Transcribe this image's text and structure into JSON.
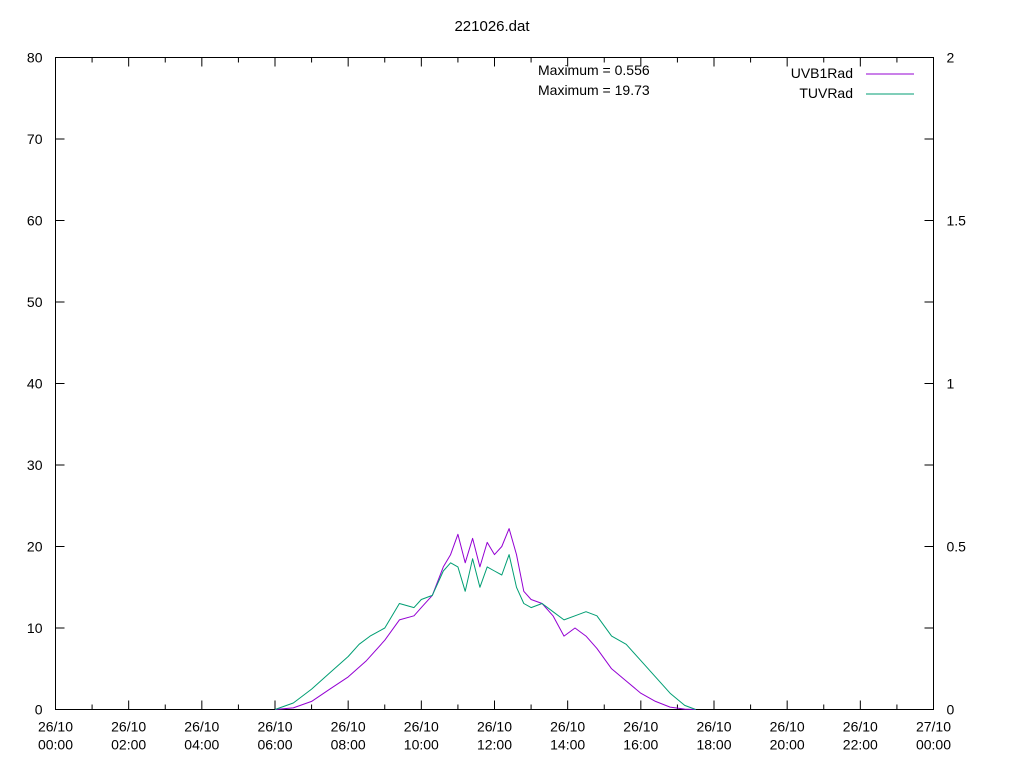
{
  "chart_data": {
    "type": "line",
    "title": "221026.dat",
    "xlabel": "",
    "ylabel": "",
    "x_ticks": [
      "26/10\n00:00",
      "26/10\n02:00",
      "26/10\n04:00",
      "26/10\n06:00",
      "26/10\n08:00",
      "26/10\n10:00",
      "26/10\n12:00",
      "26/10\n14:00",
      "26/10\n16:00",
      "26/10\n18:00",
      "26/10\n20:00",
      "26/10\n22:00",
      "27/10\n00:00"
    ],
    "x_range_hours": [
      0,
      24
    ],
    "y_left": {
      "range": [
        0,
        80
      ],
      "ticks": [
        0,
        10,
        20,
        30,
        40,
        50,
        60,
        70,
        80
      ]
    },
    "y_right": {
      "range": [
        0,
        2
      ],
      "ticks": [
        0,
        0.5,
        1,
        1.5,
        2
      ],
      "tick_labels": [
        "0",
        "0.5",
        "1",
        "1.5",
        "2"
      ]
    },
    "grid": false,
    "legend_position": "top-right",
    "annotations": [
      "Maximum = 0.556",
      "Maximum = 19.73"
    ],
    "series": [
      {
        "name": "UVB1Rad",
        "color": "#9400d3",
        "axis": "left",
        "x": [
          6.0,
          6.5,
          7.0,
          7.5,
          8.0,
          8.5,
          9.0,
          9.4,
          9.8,
          10.0,
          10.3,
          10.6,
          10.8,
          11.0,
          11.2,
          11.4,
          11.6,
          11.8,
          12.0,
          12.2,
          12.4,
          12.6,
          12.8,
          13.0,
          13.3,
          13.6,
          13.9,
          14.2,
          14.5,
          14.8,
          15.2,
          15.6,
          16.0,
          16.4,
          16.8,
          17.2,
          17.5
        ],
        "y": [
          0,
          0.2,
          1.0,
          2.5,
          4.0,
          6.0,
          8.5,
          11.0,
          11.5,
          12.5,
          14.0,
          17.5,
          19.0,
          21.5,
          18.0,
          21.0,
          17.5,
          20.5,
          19.0,
          20.0,
          22.2,
          19.0,
          14.5,
          13.5,
          13.0,
          11.5,
          9.0,
          10.0,
          9.0,
          7.5,
          5.0,
          3.5,
          2.0,
          1.0,
          0.3,
          0.05,
          0
        ]
      },
      {
        "name": "TUVRad",
        "color": "#009e73",
        "axis": "left",
        "x": [
          6.0,
          6.5,
          7.0,
          7.5,
          8.0,
          8.3,
          8.6,
          9.0,
          9.4,
          9.8,
          10.0,
          10.3,
          10.6,
          10.8,
          11.0,
          11.2,
          11.4,
          11.6,
          11.8,
          12.0,
          12.2,
          12.4,
          12.6,
          12.8,
          13.0,
          13.3,
          13.6,
          13.9,
          14.2,
          14.5,
          14.8,
          15.2,
          15.6,
          16.0,
          16.4,
          16.8,
          17.2,
          17.5
        ],
        "y": [
          0,
          0.8,
          2.5,
          4.5,
          6.5,
          8.0,
          9.0,
          10.0,
          13.0,
          12.5,
          13.5,
          14.0,
          17.0,
          18.0,
          17.5,
          14.5,
          18.5,
          15.0,
          17.5,
          17.0,
          16.5,
          19.0,
          15.0,
          13.0,
          12.5,
          13.0,
          12.0,
          11.0,
          11.5,
          12.0,
          11.5,
          9.0,
          8.0,
          6.0,
          4.0,
          2.0,
          0.5,
          0
        ]
      }
    ]
  }
}
